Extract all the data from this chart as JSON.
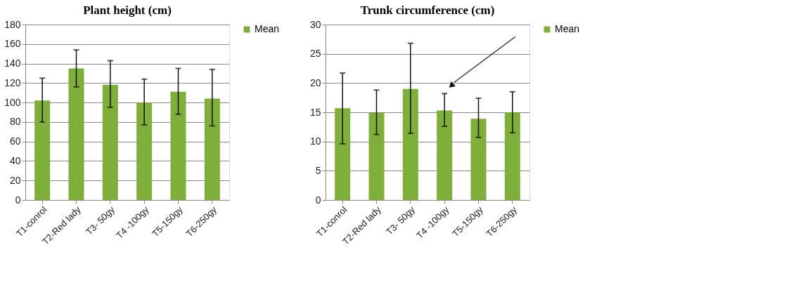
{
  "chart_data": [
    {
      "type": "bar",
      "title": "Plant height (cm)",
      "categories": [
        "T1-conrol",
        "T2-Red lady",
        "T3- 50gy",
        "T4 -100gy",
        "T5-150gy",
        "T6-250gy"
      ],
      "series": [
        {
          "name": "Mean",
          "color": "#7fae3a",
          "values": [
            102,
            135,
            118,
            100,
            111,
            104
          ],
          "errors": [
            [
              80,
              125
            ],
            [
              116,
              154
            ],
            [
              95,
              143
            ],
            [
              77,
              124
            ],
            [
              88,
              135
            ],
            [
              76,
              134
            ]
          ]
        }
      ],
      "ylim": [
        0,
        180
      ],
      "yticks": [
        0,
        20,
        40,
        60,
        80,
        100,
        120,
        140,
        160,
        180
      ],
      "grid": "y",
      "legend": "right"
    },
    {
      "type": "bar",
      "title": "Trunk circumference (cm)",
      "categories": [
        "T1-conrol",
        "T2-Red lady",
        "T3- 50gy",
        "T4 -100gy",
        "T5-150gy",
        "T6-250gy"
      ],
      "series": [
        {
          "name": "Mean",
          "color": "#7fae3a",
          "values": [
            15.7,
            14.9,
            19.0,
            15.3,
            13.9,
            15.0
          ],
          "errors": [
            [
              9.6,
              21.7
            ],
            [
              11.2,
              18.8
            ],
            [
              11.4,
              26.8
            ],
            [
              12.6,
              18.2
            ],
            [
              10.7,
              17.4
            ],
            [
              11.5,
              18.5
            ]
          ]
        }
      ],
      "ylim": [
        0,
        30
      ],
      "yticks": [
        0,
        5,
        10,
        15,
        20,
        25,
        30
      ],
      "grid": "y",
      "legend": "right"
    }
  ]
}
